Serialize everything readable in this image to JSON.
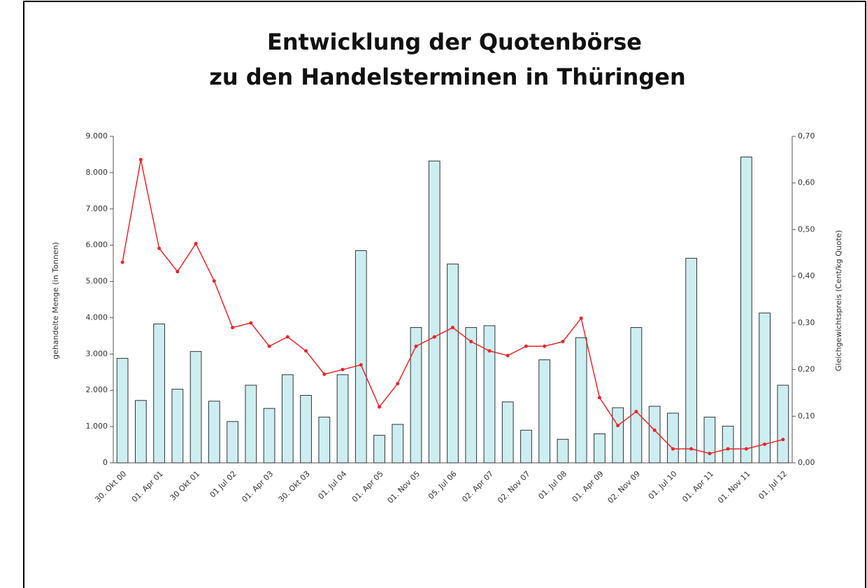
{
  "chart_data": {
    "type": "bar_line",
    "title": [
      "Entwicklung der Quotenbörse",
      "zu den Handelsterminen in Thüringen"
    ],
    "ylabel": "gehandelte Menge (in Tonnen)",
    "y2label": "Gleichgewichtspreis (Cent/kg Quote)",
    "categories": [
      "30. Okt 00",
      null,
      "01. Apr 01",
      null,
      "30 Okt 01",
      null,
      "01 Jul 02",
      null,
      "01. Apr 03",
      null,
      "30. Okt 03",
      null,
      "01. Jul 04",
      null,
      "01. Apr 05",
      null,
      "01. Nov 05",
      null,
      "05. Jul 06",
      null,
      "02. Apr 07",
      null,
      "02. Nov 07",
      null,
      "01. Jul 08",
      null,
      "01. Apr 09",
      null,
      "02. Nov 09",
      null,
      "01. Jul 10",
      null,
      "01. Apr 11",
      null,
      "01. Nov 11",
      null,
      "01. Jul 12"
    ],
    "series": [
      {
        "type": "bar",
        "color": "#cdeef0",
        "axis": "y",
        "values": [
          2880,
          1720,
          3830,
          2030,
          3070,
          1700,
          1140,
          2140,
          1500,
          2430,
          1860,
          1260,
          2430,
          5850,
          760,
          1060,
          3730,
          8320,
          5480,
          3730,
          3780,
          1680,
          900,
          2840,
          650,
          3450,
          800,
          1520,
          3730,
          1560,
          1370,
          5640,
          1260,
          1010,
          8430,
          4130,
          2140
        ]
      },
      {
        "type": "line",
        "color": "#e8262a",
        "axis": "y2",
        "values": [
          0.43,
          0.65,
          0.46,
          0.41,
          0.47,
          0.39,
          0.29,
          0.3,
          0.25,
          0.27,
          0.24,
          0.19,
          0.2,
          0.21,
          0.12,
          0.17,
          0.25,
          0.27,
          0.29,
          0.26,
          0.24,
          0.23,
          0.25,
          0.25,
          0.26,
          0.31,
          0.14,
          0.08,
          0.11,
          0.07,
          0.03,
          0.03,
          0.02,
          0.03,
          0.03,
          0.04,
          0.05
        ]
      }
    ],
    "ylim": [
      0,
      9000
    ],
    "yticks": [
      0,
      {
        "value": 1000,
        "label": "1.000"
      },
      {
        "value": 2000,
        "label": "2.000"
      },
      {
        "value": 3000,
        "label": "3.000"
      },
      {
        "value": 4000,
        "label": "4.000"
      },
      {
        "value": 5000,
        "label": "5.000"
      },
      {
        "value": 6000,
        "label": "6.000"
      },
      {
        "value": 7000,
        "label": "7.000"
      },
      {
        "value": 8000,
        "label": "8.000"
      },
      {
        "value": 9000,
        "label": "9.000"
      }
    ],
    "y2lim": [
      0,
      0.7
    ],
    "y2ticks": [
      {
        "value": 0,
        "label": "0,00"
      },
      {
        "value": 0.1,
        "label": "0,10"
      },
      {
        "value": 0.2,
        "label": "0,20"
      },
      {
        "value": 0.3,
        "label": "0,30"
      },
      {
        "value": 0.4,
        "label": "0,40"
      },
      {
        "value": 0.5,
        "label": "0,50"
      },
      {
        "value": 0.6,
        "label": "0,60"
      },
      {
        "value": 0.7,
        "label": "0,70"
      }
    ],
    "grid": false
  }
}
